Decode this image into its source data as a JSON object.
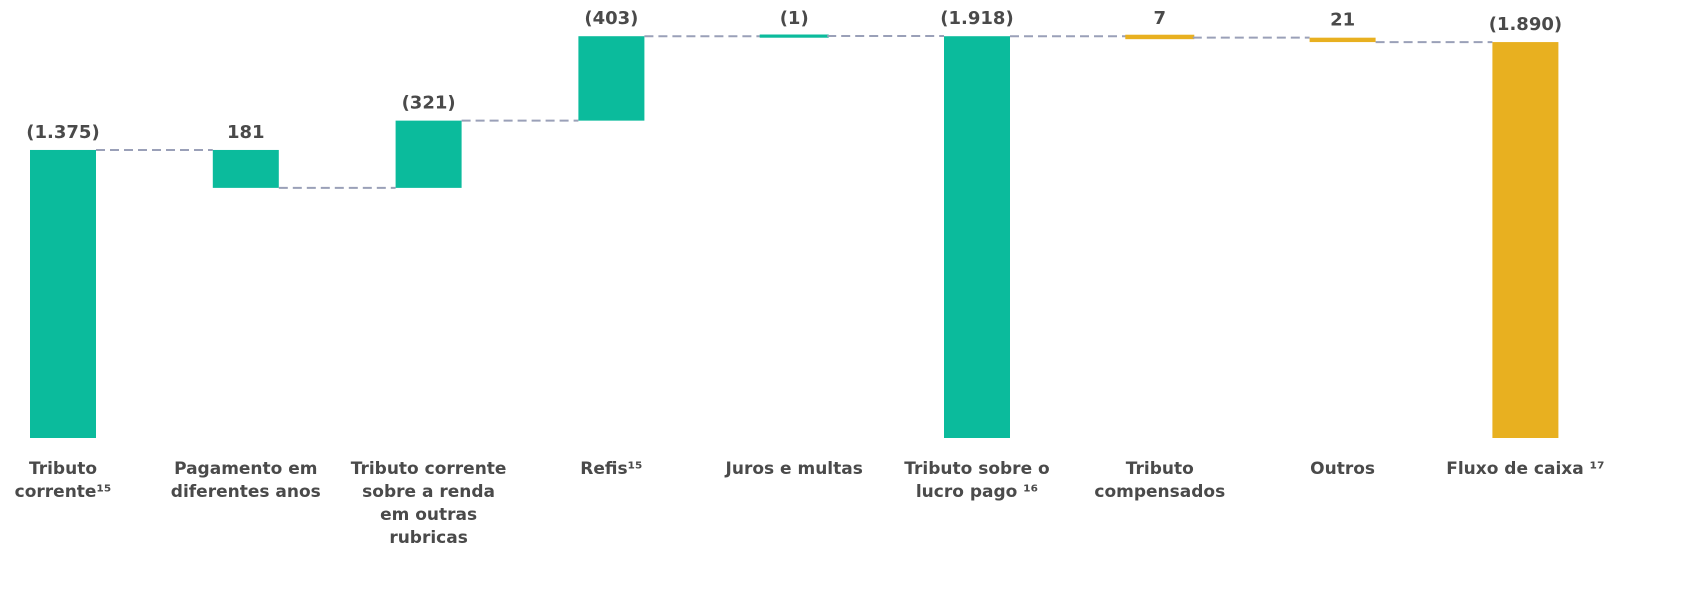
{
  "chart_data": {
    "type": "waterfall",
    "categories": [
      "Tributo corrente¹⁵",
      "Pagamento em diferentes anos",
      "Tributo corrente sobre a renda em outras rubricas",
      "Refis¹⁵",
      "Juros e multas",
      "Tributo sobre o lucro pago ¹⁶",
      "Tributo compensados",
      "Outros",
      "Fluxo de caixa ¹⁷"
    ],
    "values": [
      -1375,
      181,
      -321,
      -403,
      -1,
      -1918,
      7,
      21,
      -1890
    ],
    "value_labels": [
      "(1.375)",
      "181",
      "(321)",
      "(403)",
      "(1)",
      "(1.918)",
      "7",
      "21",
      "(1.890)"
    ],
    "totals": [
      false,
      false,
      false,
      false,
      false,
      true,
      false,
      false,
      true
    ],
    "colors": [
      "#0bbb9c",
      "#0bbb9c",
      "#0bbb9c",
      "#0bbb9c",
      "#0bbb9c",
      "#0bbb9c",
      "#e8b020",
      "#e8b020",
      "#e8b020"
    ],
    "connector_color": "#9aa0b8"
  }
}
